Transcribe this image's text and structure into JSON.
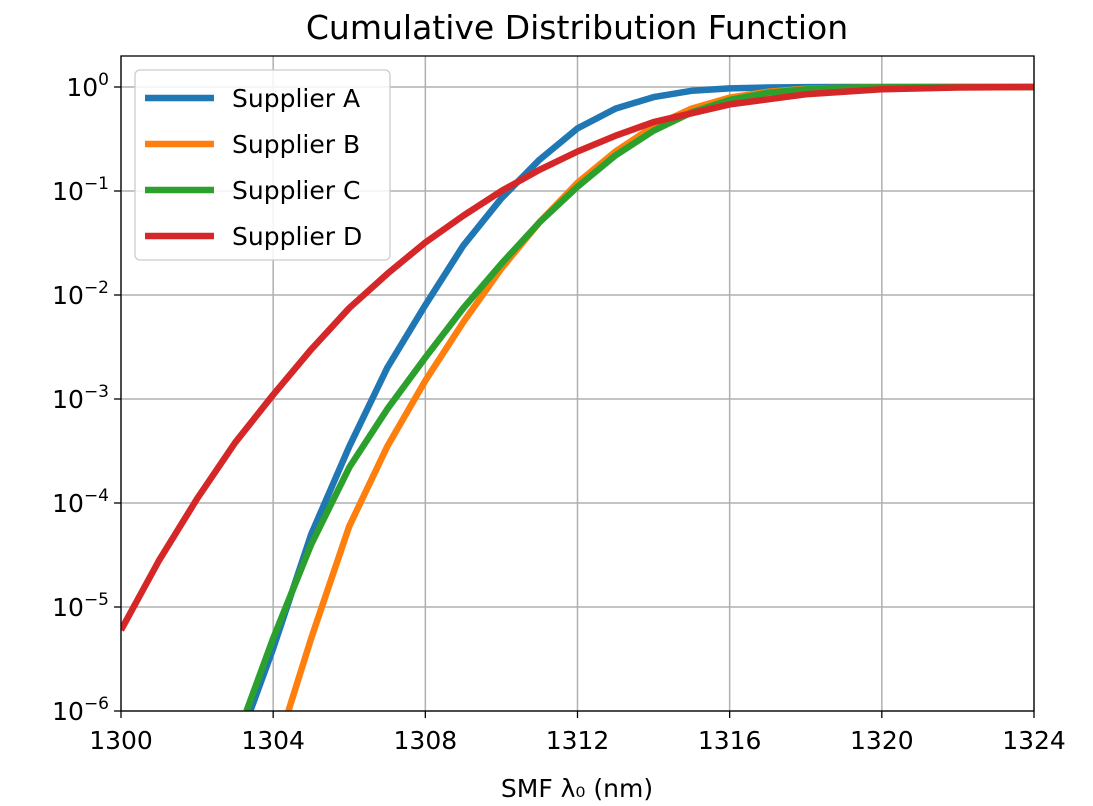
{
  "chart_data": {
    "type": "line",
    "title": "Cumulative Distribution Function",
    "xlabel": "SMF λ₀ (nm)",
    "ylabel": "",
    "xlim": [
      1300,
      1324
    ],
    "ylim_exponent": [
      -6,
      0
    ],
    "yscale": "log",
    "xticks": [
      1300,
      1304,
      1308,
      1312,
      1316,
      1320,
      1324
    ],
    "yticks": [
      {
        "base": "10",
        "exp": "0",
        "value": 1
      },
      {
        "base": "10",
        "exp": "−1",
        "value": 0.1
      },
      {
        "base": "10",
        "exp": "−2",
        "value": 0.01
      },
      {
        "base": "10",
        "exp": "−3",
        "value": 0.001
      },
      {
        "base": "10",
        "exp": "−4",
        "value": 0.0001
      },
      {
        "base": "10",
        "exp": "−5",
        "value": 1e-05
      },
      {
        "base": "10",
        "exp": "−6",
        "value": 1e-06
      }
    ],
    "grid": true,
    "legend_position": "upper-left",
    "series": [
      {
        "name": "Supplier A",
        "color": "#1f77b4",
        "x": [
          1303.4,
          1304,
          1305,
          1306,
          1307,
          1308,
          1309,
          1310,
          1311,
          1312,
          1313,
          1314,
          1315,
          1316,
          1317,
          1318,
          1319,
          1320,
          1322,
          1324
        ],
        "y": [
          1e-06,
          4e-06,
          5e-05,
          0.00035,
          0.002,
          0.008,
          0.03,
          0.085,
          0.2,
          0.4,
          0.62,
          0.8,
          0.92,
          0.97,
          0.99,
          0.997,
          0.999,
          1.0,
          1.0,
          1.0
        ]
      },
      {
        "name": "Supplier B",
        "color": "#ff7f0e",
        "x": [
          1304.4,
          1305,
          1306,
          1307,
          1308,
          1309,
          1310,
          1311,
          1312,
          1313,
          1314,
          1315,
          1316,
          1317,
          1318,
          1319,
          1320,
          1322,
          1324
        ],
        "y": [
          1e-06,
          5e-06,
          6e-05,
          0.00035,
          0.0015,
          0.0055,
          0.018,
          0.05,
          0.12,
          0.24,
          0.42,
          0.62,
          0.79,
          0.9,
          0.96,
          0.985,
          0.995,
          1.0,
          1.0
        ]
      },
      {
        "name": "Supplier C",
        "color": "#2ca02c",
        "x": [
          1303.3,
          1304,
          1305,
          1306,
          1307,
          1308,
          1309,
          1310,
          1311,
          1312,
          1313,
          1314,
          1315,
          1316,
          1317,
          1318,
          1319,
          1320,
          1322,
          1324
        ],
        "y": [
          1e-06,
          5e-06,
          4e-05,
          0.00022,
          0.0008,
          0.0025,
          0.0075,
          0.02,
          0.05,
          0.11,
          0.22,
          0.38,
          0.57,
          0.75,
          0.88,
          0.95,
          0.985,
          0.995,
          1.0,
          1.0
        ]
      },
      {
        "name": "Supplier D",
        "color": "#d62728",
        "x": [
          1300,
          1301,
          1302,
          1303,
          1304,
          1305,
          1306,
          1307,
          1308,
          1309,
          1310,
          1311,
          1312,
          1313,
          1314,
          1316,
          1318,
          1320,
          1322,
          1324
        ],
        "y": [
          6e-06,
          2.8e-05,
          0.00011,
          0.00038,
          0.0011,
          0.003,
          0.0075,
          0.016,
          0.032,
          0.058,
          0.1,
          0.16,
          0.24,
          0.34,
          0.46,
          0.68,
          0.85,
          0.95,
          0.99,
          1.0
        ]
      }
    ]
  }
}
